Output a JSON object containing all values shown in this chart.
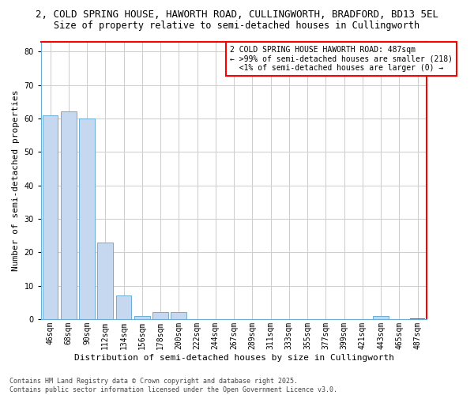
{
  "title_line1": "2, COLD SPRING HOUSE, HAWORTH ROAD, CULLINGWORTH, BRADFORD, BD13 5EL",
  "title_line2": "Size of property relative to semi-detached houses in Cullingworth",
  "xlabel": "Distribution of semi-detached houses by size in Cullingworth",
  "ylabel": "Number of semi-detached properties",
  "categories": [
    "46sqm",
    "68sqm",
    "90sqm",
    "112sqm",
    "134sqm",
    "156sqm",
    "178sqm",
    "200sqm",
    "222sqm",
    "244sqm",
    "267sqm",
    "289sqm",
    "311sqm",
    "333sqm",
    "355sqm",
    "377sqm",
    "399sqm",
    "421sqm",
    "443sqm",
    "465sqm",
    "487sqm"
  ],
  "values": [
    61,
    62,
    60,
    23,
    7,
    1,
    2,
    2,
    0,
    0,
    0,
    0,
    0,
    0,
    0,
    0,
    0,
    0,
    1,
    0,
    0
  ],
  "bar_color": "#c5d8f0",
  "bar_edge_color": "#6baed6",
  "highlight_bar_index": 20,
  "annotation_box_text": "2 COLD SPRING HOUSE HAWORTH ROAD: 487sqm\n← >99% of semi-detached houses are smaller (218)\n  <1% of semi-detached houses are larger (0) →",
  "annotation_box_color": "#ffffff",
  "annotation_box_edge_color": "#ff0000",
  "red_border_color": "#ff0000",
  "ylim": [
    0,
    83
  ],
  "yticks": [
    0,
    10,
    20,
    30,
    40,
    50,
    60,
    70,
    80
  ],
  "footnote": "Contains HM Land Registry data © Crown copyright and database right 2025.\nContains public sector information licensed under the Open Government Licence v3.0.",
  "background_color": "#ffffff",
  "grid_color": "#cccccc",
  "title1_fontsize": 9,
  "title2_fontsize": 8.5,
  "xlabel_fontsize": 8,
  "ylabel_fontsize": 8,
  "tick_fontsize": 7,
  "annot_fontsize": 7,
  "footnote_fontsize": 6
}
